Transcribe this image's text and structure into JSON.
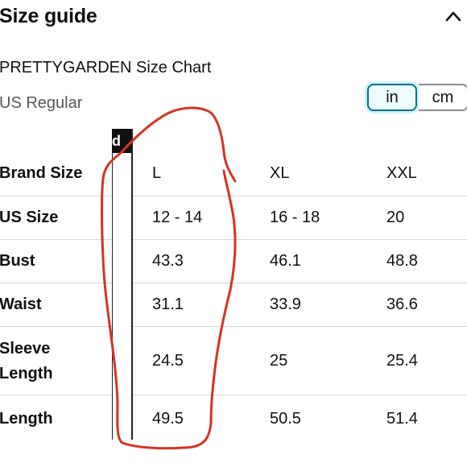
{
  "header": {
    "title": "Size guide",
    "collapse_icon": "chevron-up-icon"
  },
  "chart": {
    "name": "PRETTYGARDEN Size Chart",
    "region": "US Regular"
  },
  "units": {
    "options": [
      "in",
      "cm"
    ],
    "selected": "in"
  },
  "sticky_column": {
    "header_fragment": "d"
  },
  "table": {
    "rows": [
      {
        "label": "Brand Size",
        "values": [
          "L",
          "XL",
          "XXL"
        ]
      },
      {
        "label": "US Size",
        "values": [
          "12 - 14",
          "16 - 18",
          "20"
        ]
      },
      {
        "label": "Bust",
        "values": [
          "43.3",
          "46.1",
          "48.8"
        ]
      },
      {
        "label": "Waist",
        "values": [
          "31.1",
          "33.9",
          "36.6"
        ]
      },
      {
        "label_line1": "Sleeve",
        "label_line2": "Length",
        "values": [
          "24.5",
          "25",
          "25.4"
        ]
      },
      {
        "label": "Length",
        "values": [
          "49.5",
          "50.5",
          "51.4"
        ]
      }
    ]
  },
  "colors": {
    "accent": "#007185",
    "annotation": "#d6321f",
    "divider": "#d5d9d9"
  }
}
